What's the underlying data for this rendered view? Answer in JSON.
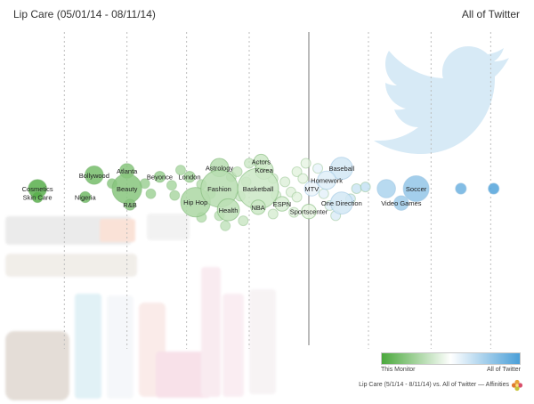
{
  "header": {
    "title": "Lip Care (05/01/14 - 08/11/14)",
    "scope": "All of Twitter"
  },
  "legend": {
    "left_label": "This Monitor",
    "right_label": "All of Twitter",
    "low_color": "#4aa83c",
    "mid_color": "#ffffff",
    "high_color": "#4a9fd8"
  },
  "caption": "Lip Care (5/1/14 - 8/11/14) vs. All of Twitter — Affinities",
  "icons": {
    "brand": "twitter-bird-icon",
    "affinities": "affinities-flower-icon"
  },
  "chart_data": {
    "type": "scatter",
    "divider_x": 0,
    "ylim": [
      -100,
      100
    ],
    "topics": [
      {
        "label": "Cosmetics",
        "affinity": -91,
        "y": 0,
        "size": 3
      },
      {
        "label": "Skin Care",
        "affinity": -91,
        "y": -10,
        "size": 1
      },
      {
        "label": "Nigeria",
        "affinity": -75,
        "y": -10,
        "size": 1
      },
      {
        "label": "Bollywood",
        "affinity": -72,
        "y": 16,
        "size": 3
      },
      {
        "label": "Atlanta",
        "affinity": -61,
        "y": 21,
        "size": 2
      },
      {
        "label": "Beauty",
        "affinity": -61,
        "y": 0,
        "size": 6
      },
      {
        "label": "R&B",
        "affinity": -60,
        "y": -19,
        "size": 1
      },
      {
        "label": "Beyonce",
        "affinity": -50,
        "y": 14,
        "size": 1
      },
      {
        "label": "London",
        "affinity": -40,
        "y": 14,
        "size": 1
      },
      {
        "label": "Hip Hop",
        "affinity": -38,
        "y": -16,
        "size": 6
      },
      {
        "label": "Astrology",
        "affinity": -30,
        "y": 25,
        "size": 3
      },
      {
        "label": "Fashion",
        "affinity": -30,
        "y": 0,
        "size": 8
      },
      {
        "label": "Health",
        "affinity": -27,
        "y": -25,
        "size": 4
      },
      {
        "label": "Actors",
        "affinity": -16,
        "y": 32,
        "size": 2
      },
      {
        "label": "Korea",
        "affinity": -15,
        "y": 22,
        "size": 3
      },
      {
        "label": "Basketball",
        "affinity": -17,
        "y": 0,
        "size": 9
      },
      {
        "label": "NBA",
        "affinity": -17,
        "y": -22,
        "size": 2
      },
      {
        "label": "ESPN",
        "affinity": -9,
        "y": -18,
        "size": 2
      },
      {
        "label": "MTV",
        "affinity": 1,
        "y": 0,
        "size": 2
      },
      {
        "label": "Sportscenter",
        "affinity": 0,
        "y": -27,
        "size": 2
      },
      {
        "label": "Baseball",
        "affinity": 11,
        "y": 24,
        "size": 4
      },
      {
        "label": "Homework",
        "affinity": 6,
        "y": 10,
        "size": 3
      },
      {
        "label": "One Direction",
        "affinity": 11,
        "y": -17,
        "size": 4
      },
      {
        "label": "Video Games",
        "affinity": 31,
        "y": -17,
        "size": 2
      },
      {
        "label": "Soccer",
        "affinity": 36,
        "y": 0,
        "size": 5
      },
      {
        "label": "",
        "affinity": 26,
        "y": 0,
        "size": 3
      },
      {
        "label": "",
        "affinity": 51,
        "y": 0,
        "size": 1
      },
      {
        "label": "",
        "affinity": 62,
        "y": 0,
        "size": 1
      }
    ]
  }
}
